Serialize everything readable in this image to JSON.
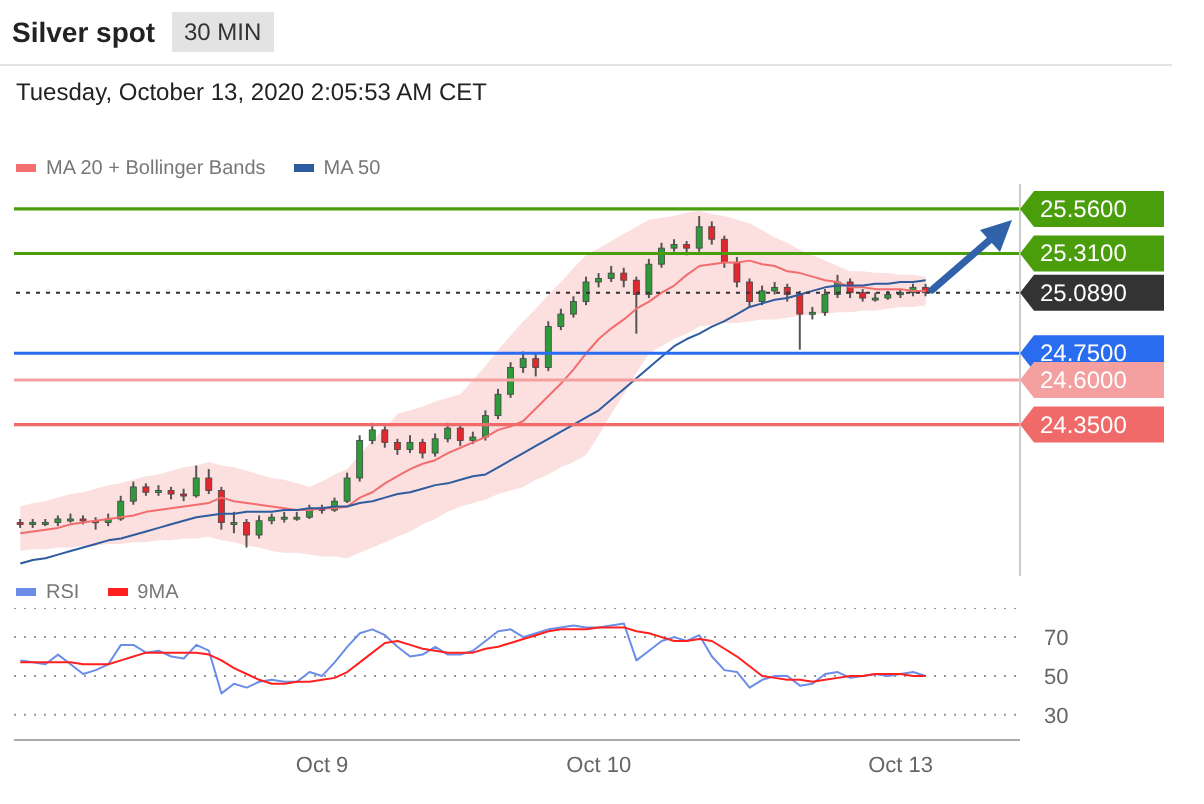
{
  "chart_data": [
    {
      "type": "candlestick",
      "title": "Silver spot",
      "subtitle": "Tuesday, October 13, 2020 2:05:53 AM CET",
      "annotations": [
        "30 MIN"
      ],
      "categories": [
        null,
        null,
        null,
        null,
        null,
        null,
        null,
        null,
        null,
        null,
        null,
        null,
        null,
        null,
        null,
        null,
        null,
        null,
        null,
        null,
        null,
        null,
        null,
        null,
        null,
        null,
        null,
        null,
        null,
        null,
        null,
        null,
        null,
        null,
        null,
        null,
        null,
        null,
        null,
        null,
        null,
        null,
        null,
        null,
        null,
        null,
        null,
        null,
        null,
        null,
        null,
        null,
        null,
        null,
        null,
        null,
        null,
        null,
        null,
        null,
        null,
        null,
        null,
        null,
        null,
        null,
        null,
        null,
        null,
        null,
        null,
        null,
        null,
        null,
        null,
        null,
        null,
        null,
        null,
        null
      ],
      "ohlc": [
        [
          23.8,
          23.82,
          23.77,
          23.79
        ],
        [
          23.79,
          23.82,
          23.77,
          23.8
        ],
        [
          23.8,
          23.82,
          23.78,
          23.8
        ],
        [
          23.8,
          23.84,
          23.78,
          23.82
        ],
        [
          23.82,
          23.85,
          23.8,
          23.82
        ],
        [
          23.82,
          23.84,
          23.79,
          23.81
        ],
        [
          23.81,
          23.83,
          23.76,
          23.8
        ],
        [
          23.8,
          23.85,
          23.78,
          23.82
        ],
        [
          23.82,
          23.95,
          23.81,
          23.92
        ],
        [
          23.92,
          24.03,
          23.9,
          24.0
        ],
        [
          24.0,
          24.02,
          23.95,
          23.97
        ],
        [
          23.97,
          24.01,
          23.95,
          23.98
        ],
        [
          23.98,
          24.0,
          23.93,
          23.96
        ],
        [
          23.96,
          23.99,
          23.92,
          23.95
        ],
        [
          23.95,
          24.12,
          23.94,
          24.05
        ],
        [
          24.05,
          24.1,
          23.96,
          23.98
        ],
        [
          23.98,
          24.0,
          23.76,
          23.8
        ],
        [
          23.8,
          23.86,
          23.74,
          23.8
        ],
        [
          23.8,
          23.82,
          23.66,
          23.73
        ],
        [
          23.73,
          23.84,
          23.71,
          23.81
        ],
        [
          23.81,
          23.85,
          23.79,
          23.83
        ],
        [
          23.83,
          23.86,
          23.8,
          23.83
        ],
        [
          23.83,
          23.86,
          23.81,
          23.83
        ],
        [
          23.83,
          23.9,
          23.82,
          23.88
        ],
        [
          23.88,
          23.9,
          23.85,
          23.87
        ],
        [
          23.87,
          23.94,
          23.86,
          23.92
        ],
        [
          23.92,
          24.08,
          23.91,
          24.05
        ],
        [
          24.05,
          24.29,
          24.03,
          24.26
        ],
        [
          24.26,
          24.36,
          24.24,
          24.32
        ],
        [
          24.32,
          24.34,
          24.22,
          24.25
        ],
        [
          24.25,
          24.27,
          24.18,
          24.21
        ],
        [
          24.21,
          24.29,
          24.19,
          24.25
        ],
        [
          24.25,
          24.27,
          24.16,
          24.19
        ],
        [
          24.19,
          24.3,
          24.17,
          24.27
        ],
        [
          24.27,
          24.36,
          24.25,
          24.33
        ],
        [
          24.33,
          24.35,
          24.23,
          24.26
        ],
        [
          24.26,
          24.31,
          24.24,
          24.28
        ],
        [
          24.28,
          24.43,
          24.26,
          24.4
        ],
        [
          24.4,
          24.55,
          24.38,
          24.52
        ],
        [
          24.52,
          24.7,
          24.5,
          24.67
        ],
        [
          24.67,
          24.76,
          24.64,
          24.72
        ],
        [
          24.72,
          24.75,
          24.62,
          24.67
        ],
        [
          24.67,
          24.93,
          24.65,
          24.9
        ],
        [
          24.9,
          25.0,
          24.88,
          24.97
        ],
        [
          24.97,
          25.07,
          24.95,
          25.04
        ],
        [
          25.04,
          25.18,
          25.02,
          25.15
        ],
        [
          25.15,
          25.2,
          25.12,
          25.17
        ],
        [
          25.17,
          25.24,
          25.15,
          25.2
        ],
        [
          25.2,
          25.23,
          25.12,
          25.16
        ],
        [
          25.16,
          25.18,
          24.86,
          25.08
        ],
        [
          25.08,
          25.28,
          25.06,
          25.25
        ],
        [
          25.25,
          25.37,
          25.23,
          25.34
        ],
        [
          25.34,
          25.39,
          25.32,
          25.36
        ],
        [
          25.36,
          25.38,
          25.3,
          25.34
        ],
        [
          25.34,
          25.52,
          25.32,
          25.46
        ],
        [
          25.46,
          25.49,
          25.36,
          25.39
        ],
        [
          25.39,
          25.41,
          25.23,
          25.26
        ],
        [
          25.26,
          25.29,
          25.12,
          25.15
        ],
        [
          25.15,
          25.17,
          25.01,
          25.04
        ],
        [
          25.04,
          25.13,
          25.02,
          25.1
        ],
        [
          25.1,
          25.15,
          25.08,
          25.12
        ],
        [
          25.12,
          25.14,
          25.04,
          25.08
        ],
        [
          25.08,
          25.1,
          24.77,
          24.97
        ],
        [
          24.97,
          25.01,
          24.94,
          24.98
        ],
        [
          24.98,
          25.11,
          24.96,
          25.08
        ],
        [
          25.08,
          25.19,
          25.06,
          25.15
        ],
        [
          25.15,
          25.17,
          25.06,
          25.09
        ],
        [
          25.09,
          25.11,
          25.04,
          25.06
        ],
        [
          25.06,
          25.09,
          25.04,
          25.06
        ],
        [
          25.06,
          25.1,
          25.05,
          25.08
        ],
        [
          25.08,
          25.11,
          25.06,
          25.09
        ],
        [
          25.09,
          25.14,
          25.07,
          25.12
        ],
        [
          25.12,
          25.14,
          25.07,
          25.09
        ],
        null,
        null,
        null,
        null,
        null,
        null,
        null
      ],
      "series": [
        {
          "name": "MA 20 + Bollinger Bands",
          "type": "line",
          "color": "#f26d6d",
          "values": [
            23.74,
            23.75,
            23.76,
            23.77,
            23.79,
            23.8,
            23.81,
            23.82,
            23.83,
            23.84,
            23.86,
            23.87,
            23.88,
            23.89,
            23.9,
            23.91,
            23.94,
            23.92,
            23.91,
            23.9,
            23.89,
            23.88,
            23.87,
            23.87,
            23.88,
            23.88,
            23.89,
            23.94,
            23.97,
            24.02,
            24.06,
            24.1,
            24.13,
            24.15,
            24.19,
            24.22,
            24.25,
            24.28,
            24.32,
            24.34,
            24.37,
            24.44,
            24.51,
            24.58,
            24.66,
            24.75,
            24.83,
            24.89,
            24.94,
            25.0,
            25.04,
            25.09,
            25.13,
            25.19,
            25.24,
            25.25,
            25.26,
            25.26,
            25.27,
            25.25,
            25.24,
            25.21,
            25.2,
            25.18,
            25.16,
            25.15,
            25.12,
            25.12,
            25.11,
            25.11,
            25.11,
            25.1,
            25.1,
            null,
            null,
            null,
            null,
            null,
            null,
            null
          ],
          "lower": [
            23.64,
            23.65,
            23.65,
            23.66,
            23.66,
            23.67,
            23.67,
            23.68,
            23.68,
            23.69,
            23.69,
            23.7,
            23.7,
            23.71,
            23.71,
            23.72,
            23.7,
            23.69,
            23.67,
            23.66,
            23.64,
            23.63,
            23.63,
            23.62,
            23.61,
            23.61,
            23.6,
            23.63,
            23.66,
            23.69,
            23.72,
            23.75,
            23.79,
            23.82,
            23.86,
            23.89,
            23.91,
            23.93,
            23.96,
            23.98,
            24.0,
            24.04,
            24.07,
            24.11,
            24.14,
            24.18,
            24.29,
            24.41,
            24.52,
            24.64,
            24.75,
            24.79,
            24.83,
            24.86,
            24.9,
            24.91,
            24.92,
            24.92,
            24.93,
            24.94,
            24.94,
            24.95,
            24.96,
            24.97,
            24.97,
            24.98,
            24.98,
            24.99,
            24.99,
            25.0,
            25.01,
            25.01,
            25.02,
            null,
            null,
            null,
            null,
            null,
            null,
            null
          ],
          "upper": [
            23.89,
            23.91,
            23.92,
            23.94,
            23.96,
            23.97,
            23.99,
            24.01,
            24.02,
            24.04,
            24.06,
            24.07,
            24.09,
            24.11,
            24.12,
            24.14,
            24.12,
            24.11,
            24.09,
            24.07,
            24.05,
            24.04,
            24.02,
            24.0,
            24.03,
            24.07,
            24.1,
            24.18,
            24.26,
            24.33,
            24.41,
            24.43,
            24.45,
            24.48,
            24.5,
            24.52,
            24.6,
            24.68,
            24.77,
            24.85,
            24.93,
            25.0,
            25.08,
            25.15,
            25.23,
            25.3,
            25.34,
            25.38,
            25.42,
            25.46,
            25.5,
            25.51,
            25.52,
            25.54,
            25.55,
            25.53,
            25.52,
            25.5,
            25.48,
            25.44,
            25.4,
            25.37,
            25.33,
            25.3,
            25.27,
            25.24,
            25.21,
            25.21,
            25.2,
            25.2,
            25.19,
            25.19,
            25.18,
            null,
            null,
            null,
            null,
            null,
            null,
            null
          ]
        },
        {
          "name": "MA 50",
          "type": "line",
          "color": "#2e5c9e",
          "values": [
            23.57,
            23.59,
            23.6,
            23.62,
            23.64,
            23.66,
            23.68,
            23.7,
            23.71,
            23.73,
            23.75,
            23.77,
            23.79,
            23.81,
            23.83,
            23.84,
            23.85,
            23.85,
            23.86,
            23.86,
            23.86,
            23.87,
            23.87,
            23.88,
            23.88,
            23.89,
            23.89,
            23.91,
            23.92,
            23.94,
            23.96,
            23.97,
            23.99,
            24.01,
            24.02,
            24.04,
            24.06,
            24.07,
            24.11,
            24.15,
            24.19,
            24.23,
            24.27,
            24.31,
            24.35,
            24.39,
            24.43,
            24.49,
            24.55,
            24.61,
            24.67,
            24.73,
            24.79,
            24.83,
            24.86,
            24.9,
            24.93,
            24.97,
            25.01,
            25.03,
            25.05,
            25.06,
            25.08,
            25.1,
            25.12,
            25.13,
            25.13,
            25.13,
            25.14,
            25.14,
            25.15,
            25.15,
            25.16,
            null,
            null,
            null,
            null,
            null,
            null,
            null
          ]
        }
      ],
      "ref_lines": [
        {
          "axis": "y",
          "value": 25.56,
          "color": "#4a9e0b",
          "line_style": "solid"
        },
        {
          "axis": "y",
          "value": 25.31,
          "color": "#4a9e0b",
          "line_style": "solid"
        },
        {
          "axis": "y",
          "value": 25.089,
          "color": "#333333",
          "line_style": "dotted"
        },
        {
          "axis": "y",
          "value": 24.75,
          "color": "#2a6cf0",
          "line_style": "solid"
        },
        {
          "axis": "y",
          "value": 24.6,
          "color": "#f4a0a0",
          "line_style": "solid"
        },
        {
          "axis": "y",
          "value": 24.35,
          "color": "#f06a6a",
          "line_style": "solid"
        }
      ],
      "yticks": [
        {
          "value": 25.56,
          "label": "25.5600"
        },
        {
          "value": 25.31,
          "label": "25.3100"
        },
        {
          "value": 25.089,
          "label": "25.0890"
        },
        {
          "value": 24.75,
          "label": "24.7500"
        },
        {
          "value": 24.6,
          "label": "24.6000"
        },
        {
          "value": 24.35,
          "label": "24.3500"
        }
      ],
      "ylim": [
        23.5,
        25.7
      ],
      "legend": "top left",
      "tick_labels": "y",
      "grid": false
    },
    {
      "type": "line",
      "categories": [
        null,
        null,
        null,
        null,
        null,
        null,
        null,
        null,
        null,
        null,
        null,
        null,
        null,
        null,
        null,
        null,
        null,
        null,
        null,
        null,
        null,
        null,
        null,
        null,
        "Oct 9",
        null,
        null,
        null,
        null,
        null,
        null,
        null,
        null,
        null,
        null,
        null,
        null,
        null,
        null,
        null,
        null,
        null,
        null,
        null,
        null,
        null,
        "Oct 10",
        null,
        null,
        null,
        null,
        null,
        null,
        null,
        null,
        null,
        null,
        null,
        null,
        null,
        null,
        null,
        null,
        null,
        null,
        null,
        null,
        null,
        null,
        null,
        "Oct 13",
        null,
        null,
        null,
        null,
        null,
        null,
        null,
        null,
        null
      ],
      "series": [
        {
          "name": "RSI",
          "color": "#6b8de8",
          "values": [
            58,
            57,
            56,
            61,
            56,
            51,
            53,
            56,
            66,
            66,
            62,
            63,
            60,
            59,
            66,
            63,
            41,
            46,
            44,
            47,
            48,
            47,
            47,
            52,
            50,
            57,
            65,
            72,
            74,
            71,
            65,
            60,
            61,
            65,
            61,
            61,
            63,
            68,
            73,
            74,
            70,
            72,
            74,
            75,
            76,
            75,
            75,
            76,
            77,
            58,
            63,
            68,
            70,
            68,
            71,
            60,
            53,
            52,
            44,
            48,
            50,
            50,
            45,
            46,
            51,
            52,
            49,
            50,
            51,
            50,
            51,
            52,
            50,
            null,
            null,
            null,
            null,
            null,
            null,
            null
          ]
        },
        {
          "name": "9MA",
          "color": "#ff2020",
          "values": [
            57,
            57,
            57,
            57,
            57,
            56,
            56,
            56,
            58,
            60,
            62,
            62,
            62,
            62,
            62,
            61,
            58,
            54,
            51,
            48,
            46,
            46,
            47,
            47,
            48,
            49,
            52,
            57,
            62,
            67,
            68,
            66,
            64,
            63,
            62,
            62,
            62,
            64,
            65,
            67,
            69,
            71,
            73,
            74,
            74,
            74,
            75,
            75,
            75,
            73,
            72,
            70,
            68,
            68,
            69,
            68,
            64,
            60,
            55,
            50,
            49,
            48,
            48,
            47,
            48,
            49,
            50,
            50,
            51,
            51,
            51,
            50,
            50,
            null,
            null,
            null,
            null,
            null,
            null,
            null
          ]
        }
      ],
      "ylim": [
        17,
        85
      ],
      "yticks": [
        30,
        50,
        70
      ],
      "grid": "y",
      "legend": "top left"
    }
  ]
}
